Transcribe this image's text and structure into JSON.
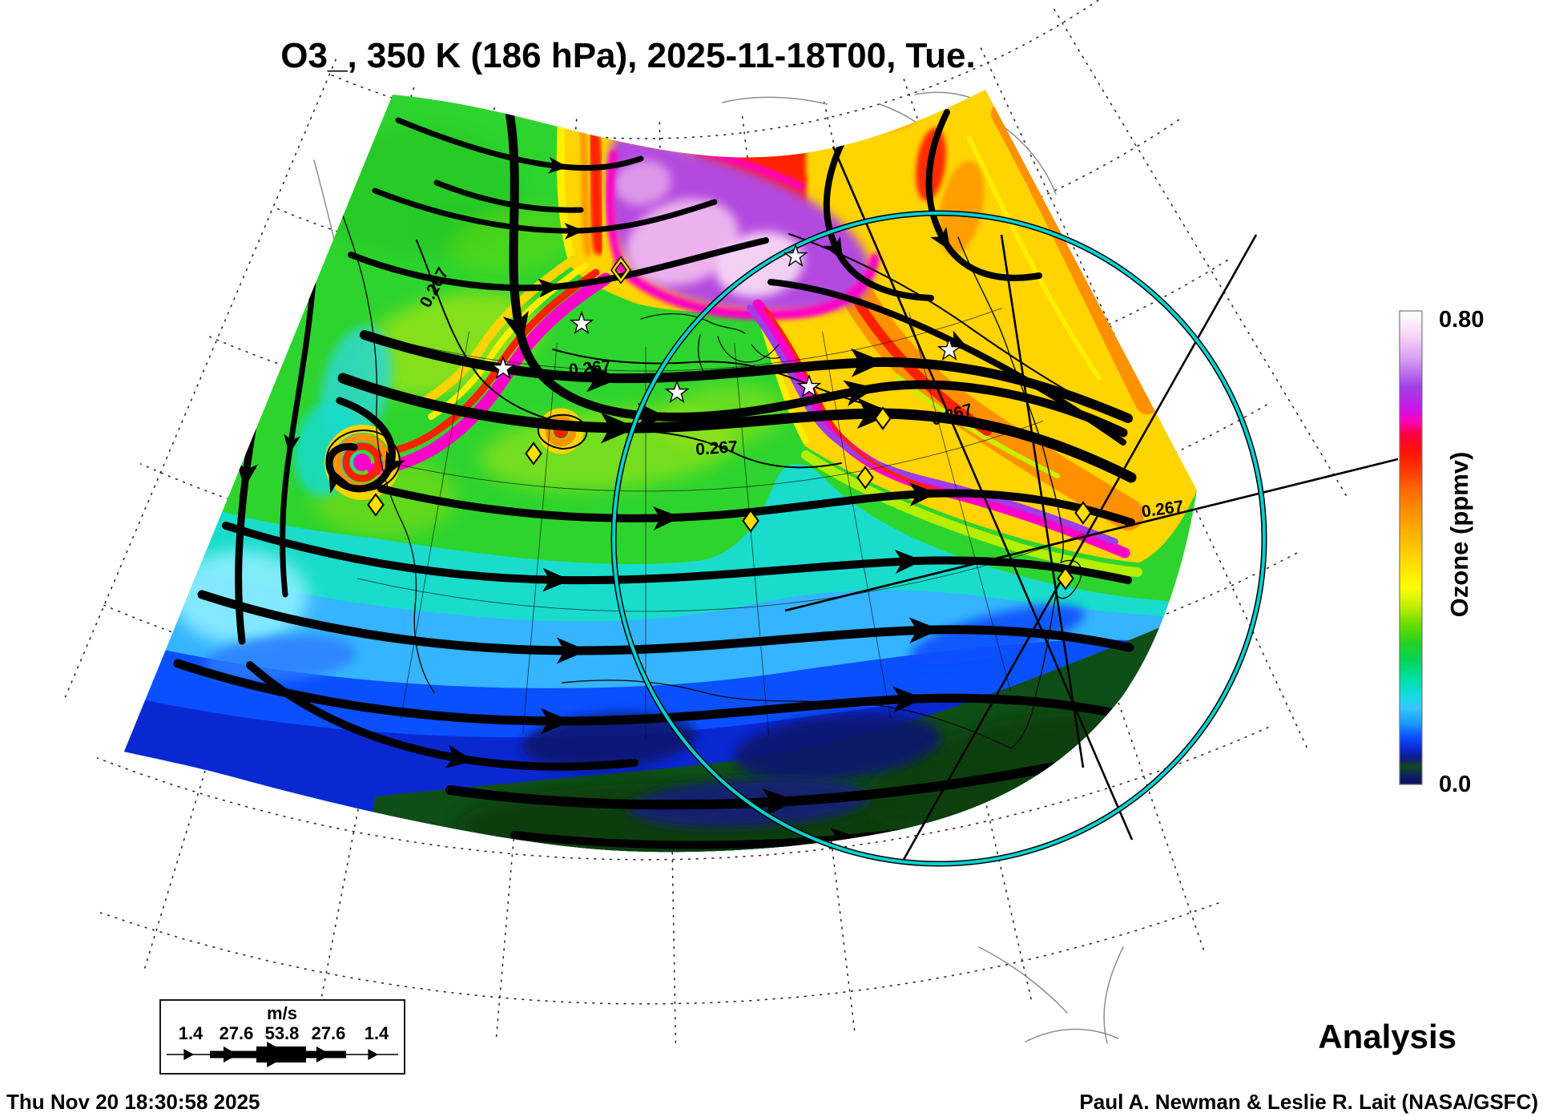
{
  "title": "O3_, 350 K (186 hPa), 2025-11-18T00, Tue.",
  "map_info": {
    "variable": "O3_",
    "theta_level": "350 K",
    "pressure_level": "186 hPa",
    "valid_time": "2025-11-18T00",
    "weekday": "Tue.",
    "product_type": "Analysis",
    "ozone_units": "ppmv",
    "ozone_range": [
      0.0,
      0.8
    ],
    "contour_value": 0.267
  },
  "colorbar": {
    "label": "Ozone (ppmv)",
    "max": "0.80",
    "min": "0.0"
  },
  "wind_legend": {
    "unit": "m/s",
    "values": [
      "1.4",
      "27.6",
      "53.8",
      "27.6",
      "1.4"
    ]
  },
  "contour_labels": [
    "0.267",
    "0.267",
    "0.267",
    "0.267",
    "0.267"
  ],
  "footer": {
    "timestamp": "Thu Nov 20 18:30:58 2025",
    "credit": "Paul A. Newman & Leslie R. Lait (NASA/GSFC)",
    "analysis_label": "Analysis"
  },
  "colors": {
    "range_ring": "#00d2d2",
    "diamond": "#ffe000",
    "star": "#ffffff",
    "streamline": "#000000",
    "graticule": "#2a2a2a"
  }
}
